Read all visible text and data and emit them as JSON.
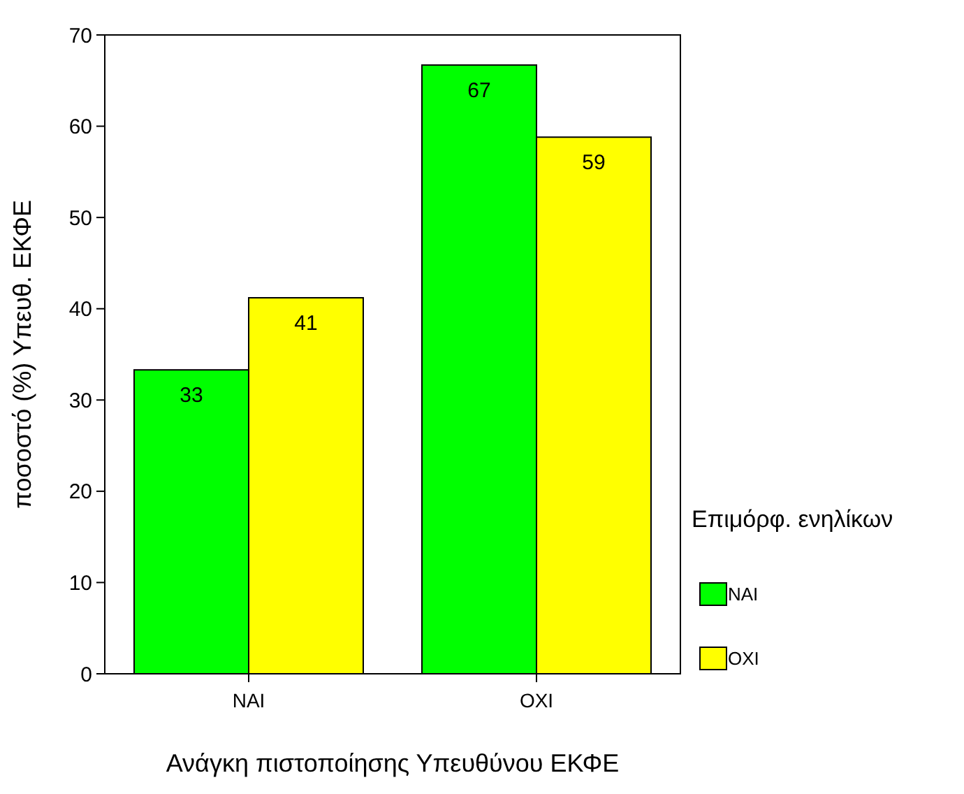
{
  "chart_data": {
    "type": "bar",
    "xlabel": "Ανάγκη πιστοποίησης Υπευθύνου ΕΚΦΕ",
    "ylabel": "ποσοστό (%) Υπευθ. ΕΚΦΕ",
    "legend_title": "Επιμόρφ. ενηλίκων",
    "categories": [
      "ΝΑΙ",
      "ΟΧΙ"
    ],
    "series": [
      {
        "name": "ΝΑΙ",
        "color": "#00ff00",
        "values": [
          33.3,
          66.7
        ],
        "value_labels": [
          "33",
          "67"
        ]
      },
      {
        "name": "ΟΧΙ",
        "color": "#ffff00",
        "values": [
          41.2,
          58.8
        ],
        "value_labels": [
          "41",
          "59"
        ]
      }
    ],
    "ylim": [
      0,
      70
    ],
    "yticks": [
      0,
      10,
      20,
      30,
      40,
      50,
      60,
      70
    ],
    "grid": false,
    "legend": "right"
  }
}
